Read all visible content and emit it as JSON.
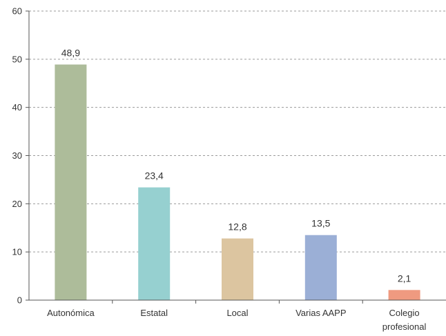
{
  "chart_data": {
    "type": "bar",
    "categories": [
      "Autonómica",
      "Estatal",
      "Local",
      "Varias AAPP",
      "Colegio profesional"
    ],
    "category_lines": [
      [
        "Autonómica"
      ],
      [
        "Estatal"
      ],
      [
        "Local"
      ],
      [
        "Varias AAPP"
      ],
      [
        "Colegio",
        "profesional"
      ]
    ],
    "values": [
      48.9,
      23.4,
      12.8,
      13.5,
      2.1
    ],
    "value_labels": [
      "48,9",
      "23,4",
      "12,8",
      "13,5",
      "2,1"
    ],
    "colors": [
      "#adbc9a",
      "#96d0d0",
      "#dcc5a0",
      "#9bafd6",
      "#ef9a80"
    ],
    "ylim": [
      0,
      60
    ],
    "yticks": [
      0,
      10,
      20,
      30,
      40,
      50,
      60
    ],
    "grid": true,
    "title": "",
    "xlabel": "",
    "ylabel": ""
  }
}
